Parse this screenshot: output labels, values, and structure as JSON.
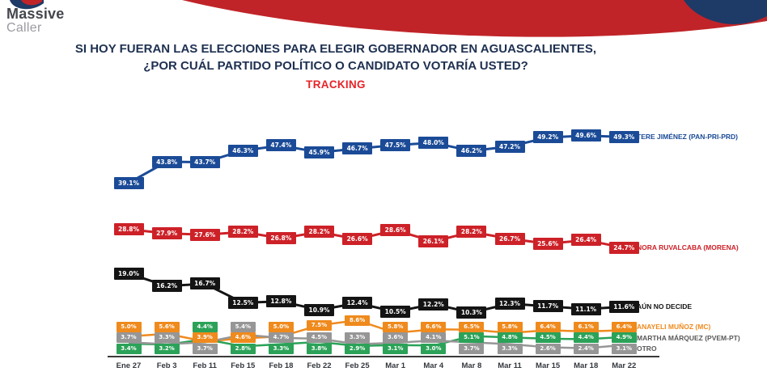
{
  "logo": {
    "line1": "Massive",
    "line2": "Caller"
  },
  "header": {
    "title_line1": "SI HOY FUERAN LAS ELECCIONES PARA ELEGIR GOBERNADOR EN AGUASCALIENTES,",
    "title_line2": "¿POR CUÁL PARTIDO POLÍTICO O CANDIDATO VOTARÍA USTED?"
  },
  "brand_colors": {
    "navy": "#1e3a66",
    "red": "#c02428"
  },
  "chart_data": {
    "type": "line",
    "title": "TRACKING",
    "xlabel": "",
    "ylabel": "",
    "ylim": [
      0,
      55
    ],
    "grid": false,
    "legend_position": "right",
    "categories": [
      "Ene 27",
      "Feb 3",
      "Feb 11",
      "Feb 15",
      "Feb 18",
      "Feb 22",
      "Feb 25",
      "Mar 1",
      "Mar 4",
      "Mar 8",
      "Mar 11",
      "Mar 15",
      "Mar 18",
      "Mar 22"
    ],
    "series": [
      {
        "name": "tere-jimenez",
        "label": "TERE JIMÉNEZ (PAN-PRI-PRD)",
        "color": "#1b4b97",
        "label_color": "#1b4b97",
        "values": [
          39.1,
          43.8,
          43.7,
          46.3,
          47.4,
          45.9,
          46.7,
          47.5,
          48.0,
          46.2,
          47.2,
          49.2,
          49.6,
          49.3
        ]
      },
      {
        "name": "nora-ruvalcaba",
        "label": "NORA RUVALCABA (MORENA)",
        "color": "#cd2128",
        "label_color": "#cd2128",
        "values": [
          28.8,
          27.9,
          27.6,
          28.2,
          26.8,
          28.2,
          26.6,
          28.6,
          26.1,
          28.2,
          26.7,
          25.6,
          26.4,
          24.7
        ]
      },
      {
        "name": "aun-no-decide",
        "label": "AÚN NO DECIDE",
        "color": "#141414",
        "label_color": "#141414",
        "values": [
          19.0,
          16.2,
          16.7,
          12.5,
          12.8,
          10.9,
          12.4,
          10.5,
          12.2,
          10.3,
          12.3,
          11.7,
          11.1,
          11.6
        ]
      },
      {
        "name": "anayeli-munoz",
        "label": "ANAYELI MUÑOZ (MC)",
        "color": "#ef8a1d",
        "label_color": "#ef8a1d",
        "values": [
          5.0,
          5.6,
          3.9,
          4.6,
          5.0,
          7.5,
          8.6,
          5.8,
          6.6,
          6.5,
          5.8,
          6.4,
          6.1,
          6.4
        ]
      },
      {
        "name": "martha-marquez",
        "label": "MARTHA MÁRQUEZ (PVEM-PT)",
        "color": "#2ba258",
        "label_color": "#595959",
        "values": [
          3.4,
          3.2,
          4.4,
          2.8,
          3.3,
          3.8,
          2.9,
          3.1,
          3.0,
          5.1,
          4.8,
          4.5,
          4.4,
          4.9
        ]
      },
      {
        "name": "otro",
        "label": "OTRO",
        "color": "#969696",
        "label_color": "#595959",
        "values": [
          3.7,
          3.3,
          3.7,
          5.4,
          4.7,
          4.5,
          3.3,
          3.6,
          4.1,
          3.7,
          3.3,
          2.6,
          2.4,
          3.1
        ]
      }
    ]
  }
}
